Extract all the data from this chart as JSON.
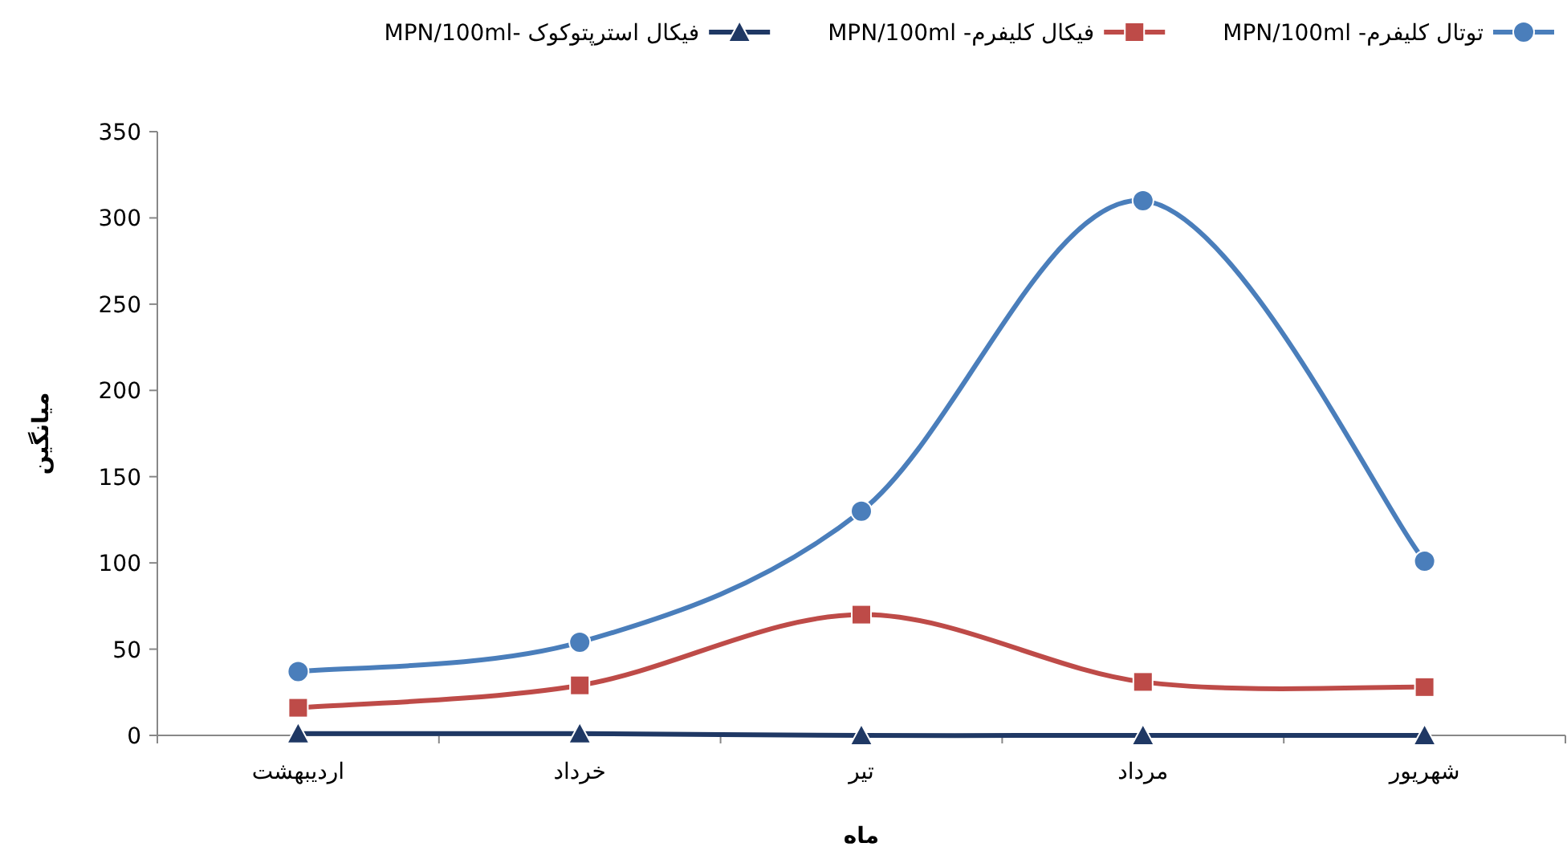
{
  "chart_data": {
    "type": "line",
    "xlabel": "ماه",
    "ylabel": "میانگین",
    "categories": [
      "اردیبهشت",
      "خرداد",
      "تیر",
      "مرداد",
      "شهریور"
    ],
    "series": [
      {
        "name": "توتال کلیفرم- MPN/100ml",
        "color": "#4a7ebb",
        "marker": "circle",
        "values": [
          37,
          54,
          130,
          310,
          101
        ]
      },
      {
        "name": "فیکال کلیفرم- MPN/100ml",
        "color": "#be4b48",
        "marker": "square",
        "values": [
          16,
          29,
          70,
          31,
          28
        ]
      },
      {
        "name": "فیکال استرپتوکوک -MPN/100ml",
        "color": "#1f3864",
        "marker": "triangle",
        "values": [
          1,
          1,
          0,
          0,
          0
        ]
      }
    ],
    "ylim": [
      0,
      350
    ],
    "yticks": [
      0,
      50,
      100,
      150,
      200,
      250,
      300,
      350
    ],
    "grid": false,
    "legend": "top",
    "line_style": "solid"
  }
}
